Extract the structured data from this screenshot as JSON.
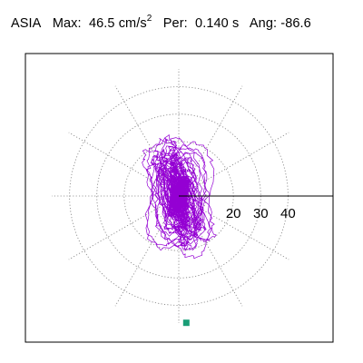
{
  "chart_data": {
    "type": "polar-orbit",
    "title": {
      "station": "ASIA",
      "max_label": "Max:",
      "max_value": "46.5",
      "max_unit": "cm/s",
      "max_unit_exp": "2",
      "per_label": "Per:",
      "per_value": "0.140 s",
      "ang_label": "Ang:",
      "ang_value": "-86.6"
    },
    "max_amplitude": 46.5,
    "angle_deg": -86.6,
    "radial_ticks": [
      "20",
      "30",
      "40"
    ],
    "radial_rings": [
      10,
      20,
      30,
      40
    ],
    "radial_max": 52.5,
    "grid": "dotted",
    "colors": {
      "trace": "#9400d3",
      "marker": "#1a9e77",
      "grid": "#808080",
      "axis": "#000000"
    }
  }
}
